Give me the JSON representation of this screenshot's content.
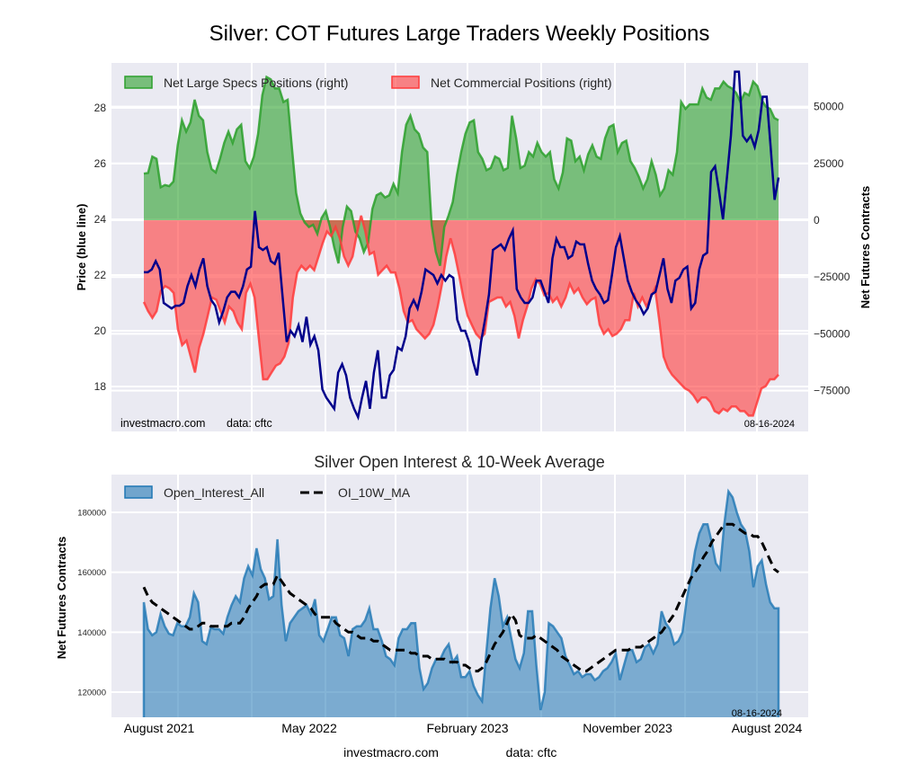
{
  "figure_title": "Silver: COT Futures Large Traders Weekly Positions",
  "chart_data": [
    {
      "type": "area",
      "title": "Silver: COT Futures Large Traders Weekly Positions",
      "ylabel_left": "Price (blue line)",
      "ylabel_right": "Net Futures Contracts",
      "ylim_left": [
        16.9,
        29.4
      ],
      "ylim_right": [
        -90000,
        73000
      ],
      "yticks_left": [
        "18",
        "20",
        "22",
        "24",
        "26",
        "28"
      ],
      "yticks_left_values": [
        18,
        20,
        22,
        24,
        26,
        28
      ],
      "yticks_right": [
        "−75000",
        "−50000",
        "−25000",
        "0",
        "25000",
        "50000"
      ],
      "yticks_right_values": [
        -75000,
        -50000,
        -25000,
        0,
        25000,
        50000
      ],
      "grid": true,
      "legend_position": "top-left",
      "legend": [
        {
          "label": "Net Large Specs Positions (right)",
          "color": "#2ca02c"
        },
        {
          "label": "Net Commercial Positions (right)",
          "color": "#ff3b3b"
        }
      ],
      "annotations": {
        "source": "investmacro.com",
        "data": "data: cftc",
        "date": "08-16-2024"
      },
      "series": [
        {
          "name": "Net Large Specs Positions",
          "axis": "right",
          "color": "#2ca02c",
          "values": [
            20500,
            20800,
            28000,
            27000,
            14500,
            15500,
            15000,
            17000,
            33000,
            44000,
            39000,
            43000,
            53000,
            46000,
            44000,
            30000,
            22500,
            21000,
            27000,
            34000,
            39000,
            34000,
            40000,
            42000,
            26000,
            23000,
            28000,
            38000,
            55000,
            63000,
            62000,
            58000,
            58000,
            52000,
            53000,
            32000,
            12000,
            3000,
            -1000,
            -3000,
            -2000,
            -6000,
            1000,
            4000,
            -3000,
            -12000,
            -19000,
            -3000,
            6000,
            4000,
            -5000,
            -8000,
            -14000,
            -10000,
            5000,
            11000,
            12000,
            10000,
            11000,
            16000,
            12000,
            30000,
            42000,
            46000,
            40000,
            38000,
            32000,
            30000,
            -2000,
            -14000,
            -20000,
            -3000,
            2000,
            8000,
            20000,
            30000,
            38000,
            43000,
            44000,
            30000,
            27000,
            22000,
            23000,
            28000,
            27000,
            22000,
            23000,
            46000,
            36000,
            23000,
            24000,
            30000,
            28000,
            34000,
            30000,
            28000,
            30000,
            18000,
            14000,
            21000,
            36000,
            35000,
            26000,
            28000,
            22000,
            29000,
            33000,
            28000,
            27000,
            36000,
            41000,
            42000,
            30000,
            34000,
            35000,
            26000,
            23000,
            19000,
            14000,
            18000,
            26000,
            20000,
            11000,
            14000,
            22000,
            20000,
            30000,
            52000,
            49000,
            51000,
            51000,
            51000,
            58000,
            54000,
            53000,
            58000,
            58000,
            61000,
            59000,
            58000,
            56000,
            52000,
            56000,
            55000,
            61000,
            59000,
            53000,
            50000,
            49000,
            45000,
            44000
          ]
        },
        {
          "name": "Net Commercial Positions",
          "axis": "right",
          "color": "#ff3b3b",
          "values": [
            -36000,
            -40000,
            -43000,
            -40000,
            -31000,
            -29000,
            -30000,
            -32000,
            -48000,
            -55000,
            -53000,
            -60000,
            -67000,
            -56000,
            -50000,
            -42000,
            -34000,
            -35000,
            -40000,
            -45000,
            -38000,
            -40000,
            -45000,
            -48000,
            -32000,
            -28000,
            -34000,
            -52000,
            -70000,
            -70000,
            -67000,
            -64000,
            -63000,
            -60000,
            -54000,
            -34000,
            -23000,
            -20000,
            -22000,
            -20000,
            -22000,
            -16000,
            -10000,
            -5000,
            -7000,
            -3000,
            -8000,
            -16000,
            -20000,
            -16000,
            -6000,
            2000,
            -5000,
            -15000,
            -14000,
            -24000,
            -22000,
            -20000,
            -23000,
            -23000,
            -30000,
            -40000,
            -45000,
            -44000,
            -48000,
            -50000,
            -52000,
            -50000,
            -46000,
            -38000,
            -28000,
            -16000,
            -8000,
            -15000,
            -24000,
            -34000,
            -42000,
            -46000,
            -50000,
            -52000,
            -50000,
            -36000,
            -35000,
            -34000,
            -34000,
            -38000,
            -36000,
            -42000,
            -52000,
            -44000,
            -38000,
            -30000,
            -26000,
            -28000,
            -33000,
            -32000,
            -36000,
            -34000,
            -38000,
            -34000,
            -28000,
            -32000,
            -30000,
            -34000,
            -37000,
            -35000,
            -34000,
            -46000,
            -50000,
            -48000,
            -51000,
            -50000,
            -48000,
            -44000,
            -44000,
            -32000,
            -38000,
            -34000,
            -38000,
            -34000,
            -30000,
            -44000,
            -60000,
            -65000,
            -68000,
            -70000,
            -72000,
            -74000,
            -75000,
            -77000,
            -80000,
            -78000,
            -78000,
            -80000,
            -84000,
            -85000,
            -83000,
            -84000,
            -82000,
            -82000,
            -84000,
            -84000,
            -86000,
            -86000,
            -80000,
            -74000,
            -73000,
            -70000,
            -70000,
            -68000
          ]
        },
        {
          "name": "Price",
          "axis": "left",
          "color": "#00008b",
          "values": [
            22.1,
            22.1,
            22.2,
            22.5,
            22.2,
            21.0,
            20.9,
            20.8,
            20.9,
            20.9,
            21.0,
            21.6,
            22.0,
            21.6,
            22.2,
            22.6,
            21.6,
            21.1,
            20.9,
            20.3,
            20.7,
            21.2,
            21.4,
            21.4,
            21.2,
            21.6,
            22.2,
            22.3,
            24.3,
            23.0,
            22.9,
            23.0,
            22.5,
            22.4,
            22.8,
            21.2,
            19.6,
            20.0,
            19.8,
            20.2,
            19.6,
            20.5,
            19.5,
            19.8,
            19.3,
            17.9,
            17.6,
            17.4,
            17.2,
            18.5,
            18.8,
            18.4,
            17.6,
            17.2,
            16.9,
            17.6,
            18.2,
            17.2,
            18.5,
            19.3,
            17.6,
            17.6,
            18.4,
            18.6,
            19.4,
            19.3,
            19.8,
            20.8,
            21.1,
            20.8,
            21.4,
            22.2,
            22.1,
            22.0,
            21.7,
            22.0,
            21.8,
            22.0,
            21.9,
            20.4,
            20.0,
            20.0,
            19.6,
            18.9,
            18.4,
            19.6,
            20.4,
            21.3,
            22.9,
            23.0,
            23.1,
            22.9,
            23.3,
            23.6,
            21.5,
            21.2,
            21.0,
            21.0,
            21.2,
            21.8,
            21.8,
            21.4,
            21.0,
            22.6,
            23.3,
            23.0,
            23.0,
            22.6,
            22.7,
            23.2,
            23.1,
            23.1,
            22.4,
            21.8,
            21.5,
            21.3,
            21.0,
            21.1,
            22.0,
            23.0,
            23.4,
            22.6,
            21.8,
            21.4,
            21.1,
            20.9,
            20.6,
            20.8,
            21.3,
            21.4,
            22.0,
            22.6,
            21.5,
            21.0,
            21.8,
            21.9,
            22.2,
            22.3,
            20.8,
            21.0,
            22.2,
            22.7,
            22.8,
            25.7,
            25.9,
            25.0,
            24.0,
            25.5,
            27.0,
            29.3,
            29.3,
            27.0,
            26.8,
            27.0,
            26.6,
            27.2,
            28.4,
            28.4,
            26.6,
            24.7,
            25.5
          ]
        }
      ]
    },
    {
      "type": "area",
      "title": "Silver Open Interest & 10-Week Average",
      "ylabel": "Net Futures Contracts",
      "ylim": [
        111000,
        192000
      ],
      "yticks": [
        "120000",
        "140000",
        "160000",
        "180000"
      ],
      "yticks_values": [
        120000,
        140000,
        160000,
        180000
      ],
      "xticks": [
        "August 2021",
        "May 2022",
        "February 2023",
        "November 2023",
        "August 2024"
      ],
      "grid": true,
      "legend_position": "top-left",
      "legend": [
        {
          "label": "Open_Interest_All",
          "color": "#1f77b4"
        },
        {
          "label": "OI_10W_MA",
          "color": "#000000",
          "style": "dashed"
        }
      ],
      "annotations": {
        "date": "08-16-2024"
      },
      "series": [
        {
          "name": "Open_Interest_All",
          "color": "#1f77b4",
          "values": [
            150000,
            141000,
            139000,
            140000,
            146000,
            142000,
            139500,
            139000,
            143000,
            142000,
            142000,
            145000,
            153000,
            150000,
            137000,
            136000,
            141500,
            141000,
            141000,
            139500,
            145000,
            149000,
            152000,
            150000,
            158000,
            162000,
            159000,
            168000,
            161000,
            158000,
            151000,
            152000,
            171000,
            149000,
            137000,
            143000,
            145000,
            147000,
            148000,
            149000,
            146000,
            151000,
            139000,
            137000,
            141000,
            145000,
            145000,
            139000,
            138000,
            132000,
            141000,
            142000,
            142000,
            144000,
            148000,
            141000,
            141000,
            137000,
            132000,
            131000,
            129000,
            138000,
            141000,
            141000,
            143000,
            143000,
            128000,
            121000,
            123000,
            128000,
            131000,
            131000,
            134000,
            136000,
            130000,
            132000,
            125000,
            125000,
            127000,
            122000,
            119000,
            117000,
            133000,
            148000,
            158000,
            152000,
            142000,
            145000,
            138000,
            131000,
            128000,
            133000,
            147000,
            147000,
            129000,
            114000,
            120000,
            143000,
            142000,
            140000,
            138000,
            132000,
            129000,
            126000,
            127000,
            125000,
            126000,
            126000,
            124000,
            125000,
            127000,
            128000,
            130000,
            133000,
            124000,
            129000,
            134000,
            134000,
            130000,
            131000,
            135000,
            136000,
            133000,
            136000,
            147000,
            143000,
            141000,
            136000,
            137000,
            140000,
            151000,
            158000,
            167000,
            173000,
            176000,
            176000,
            170000,
            163000,
            161000,
            176000,
            187000,
            185000,
            180000,
            176000,
            174000,
            167000,
            155000,
            162000,
            164000,
            156000,
            150000,
            148000,
            148000
          ]
        },
        {
          "name": "OI_10W_MA",
          "color": "#000000",
          "style": "dashed",
          "values": [
            155000,
            152000,
            150000,
            149000,
            148000,
            147000,
            146000,
            145000,
            144000,
            143000,
            142000,
            141000,
            141000,
            142000,
            143000,
            143000,
            142000,
            142000,
            142000,
            142000,
            142000,
            143000,
            143000,
            143000,
            145000,
            148000,
            150000,
            152000,
            155000,
            156000,
            156000,
            156000,
            159000,
            157000,
            155000,
            153000,
            152000,
            151000,
            150000,
            149000,
            148000,
            146000,
            145000,
            145000,
            145000,
            145000,
            143000,
            142000,
            141000,
            140000,
            140000,
            139000,
            138000,
            138000,
            138000,
            137000,
            137000,
            136000,
            135000,
            134000,
            134000,
            134000,
            134000,
            134000,
            133000,
            133000,
            132000,
            132000,
            132000,
            131000,
            131000,
            131000,
            131000,
            130000,
            130000,
            130000,
            129000,
            129000,
            128000,
            127000,
            127000,
            128000,
            130000,
            133000,
            136000,
            138000,
            140000,
            143000,
            146000,
            144000,
            139000,
            138000,
            138000,
            138000,
            139000,
            138000,
            137000,
            136000,
            135000,
            134000,
            132000,
            131000,
            130000,
            129000,
            128000,
            127000,
            127000,
            128000,
            129000,
            130000,
            131000,
            132000,
            133000,
            134000,
            134000,
            134000,
            134000,
            135000,
            135000,
            135000,
            136000,
            137000,
            138000,
            139000,
            140000,
            142000,
            144000,
            146000,
            149000,
            152000,
            155000,
            158000,
            160000,
            162000,
            165000,
            167000,
            170000,
            172000,
            174000,
            176000,
            176000,
            176000,
            175000,
            174000,
            173000,
            173000,
            172000,
            172000,
            170000,
            167000,
            164000,
            161000,
            160000
          ]
        }
      ]
    }
  ],
  "top_panel": {
    "source_label": "investmacro.com",
    "data_label": "data: cftc",
    "date_label": "08-16-2024"
  },
  "bottom_panel": {
    "title": "Silver Open Interest & 10-Week Average",
    "date_label": "08-16-2024",
    "footer_source": "investmacro.com",
    "footer_data": "data: cftc"
  }
}
